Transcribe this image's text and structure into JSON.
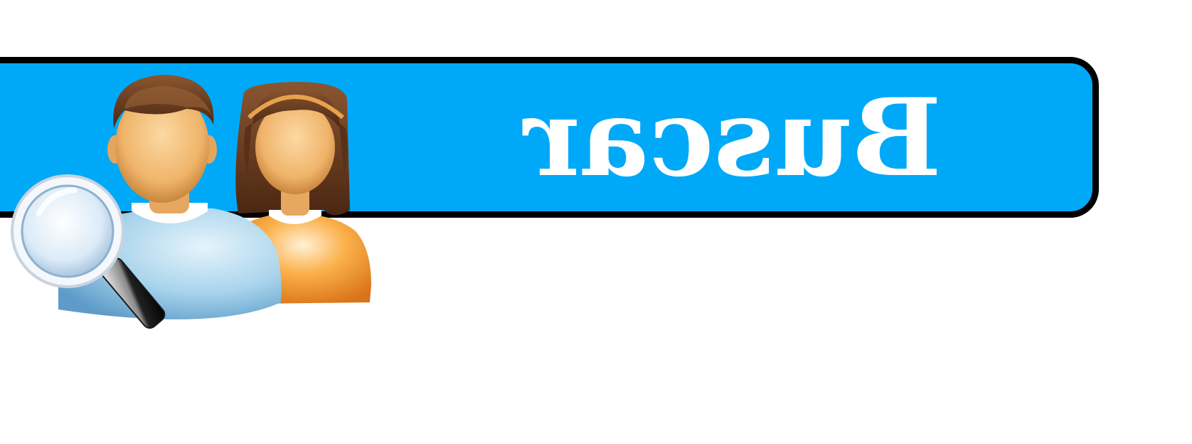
{
  "search_banner": {
    "label": "Buscar",
    "label_mirrored": true,
    "background_color": "#00a9f8",
    "border_color": "#000000",
    "text_color": "#ffffff"
  },
  "icons": {
    "users": "user-search-icon",
    "magnifier": "magnifying-glass-icon"
  },
  "palette": {
    "man_shirt": "#9fd0ea",
    "woman_shirt": "#f79a2c",
    "skin": "#f0b873",
    "hair": "#6b3b1e"
  }
}
